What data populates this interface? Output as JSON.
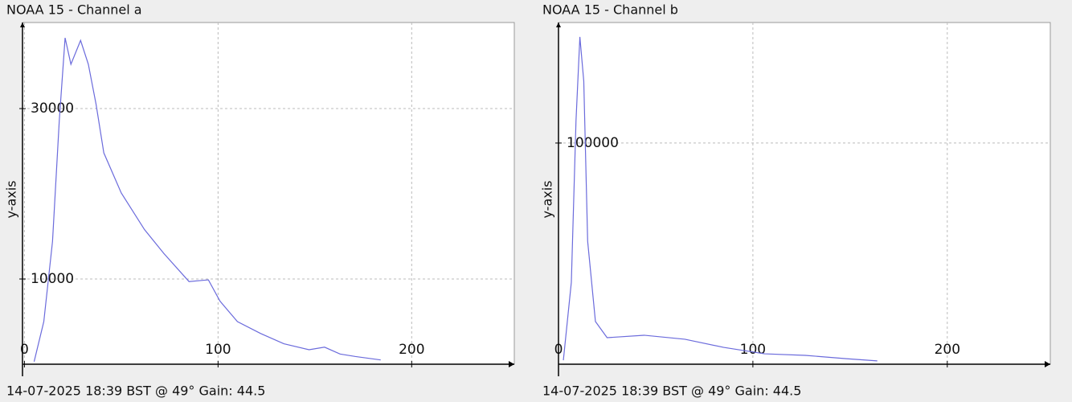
{
  "chart_data": [
    {
      "type": "line",
      "title": "NOAA 15 - Channel a",
      "caption": "14-07-2025 18:39 BST @ 49° Gain: 44.5",
      "y_label": "y-axis",
      "x": [
        5,
        10,
        14.5,
        18,
        21,
        24,
        29,
        33,
        37,
        41,
        50,
        62,
        72,
        85,
        95,
        101,
        110,
        122,
        134,
        147,
        155,
        163,
        171,
        184
      ],
      "series": [
        {
          "color": "#6b6bdc",
          "values": [
            300,
            5000,
            14400,
            28600,
            38300,
            35200,
            38000,
            35200,
            30500,
            24800,
            20100,
            15800,
            13000,
            9700,
            9900,
            7400,
            5000,
            3600,
            2400,
            1700,
            2000,
            1200,
            900,
            500
          ]
        }
      ],
      "xlim": [
        -1,
        253
      ],
      "ylim": [
        0,
        40100
      ],
      "xticks": [
        0,
        100,
        200
      ],
      "yticks": [
        10000,
        30000
      ],
      "grid": true
    },
    {
      "type": "line",
      "title": "NOAA 15 - Channel b",
      "caption": "14-07-2025 18:39 BST @ 49° Gain: 44.5",
      "y_label": "y-axis",
      "x": [
        2.5,
        6.6,
        9,
        11,
        13,
        15,
        19,
        25,
        44,
        65,
        85,
        106,
        127,
        148,
        164
      ],
      "series": [
        {
          "color": "#6b6bdc",
          "values": [
            1800,
            37000,
            110000,
            148000,
            128000,
            55600,
            19300,
            12000,
            13100,
            11300,
            7600,
            4700,
            4000,
            2500,
            1500
          ]
        }
      ],
      "xlim": [
        0,
        253
      ],
      "ylim": [
        0,
        154500
      ],
      "xticks": [
        0,
        100,
        200
      ],
      "yticks": [
        100000
      ],
      "grid": true
    }
  ]
}
